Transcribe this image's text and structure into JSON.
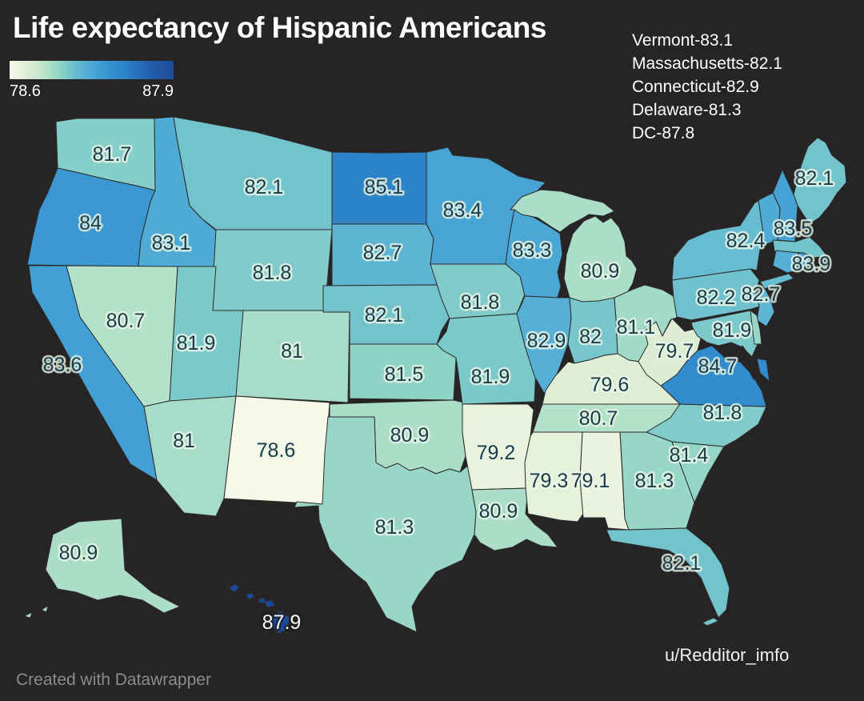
{
  "header": {
    "title": "Life expectancy of Hispanic Americans"
  },
  "legend": {
    "min_label": "78.6",
    "max_label": "87.9"
  },
  "annotations": {
    "lines": [
      "Vermont-83.1",
      "Massachusetts-82.1",
      "Connecticut-82.9",
      "Delaware-81.3",
      "DC-87.8"
    ]
  },
  "credit": {
    "text": "u/Redditor_imfo"
  },
  "watermark": {
    "text": "Created with Datawrapper"
  },
  "chart_data": {
    "type": "heatmap",
    "subtype": "us-state-choropleth",
    "title": "Life expectancy of Hispanic Americans",
    "legend_min": 78.6,
    "legend_max": 87.9,
    "background": "#262424",
    "border_color": "#2c2a2a",
    "label_color": "#1a3a48",
    "color_scale": [
      {
        "v": 78.6,
        "c": "#f6f9e9"
      },
      {
        "v": 79.3,
        "c": "#e6f1da"
      },
      {
        "v": 79.8,
        "c": "#d9ecd2"
      },
      {
        "v": 80.4,
        "c": "#c2e5ca"
      },
      {
        "v": 81.0,
        "c": "#a6dcc8"
      },
      {
        "v": 81.5,
        "c": "#8fd3c7"
      },
      {
        "v": 82.0,
        "c": "#77c6cc"
      },
      {
        "v": 82.5,
        "c": "#63b9d2"
      },
      {
        "v": 83.0,
        "c": "#53add4"
      },
      {
        "v": 83.6,
        "c": "#43a0d4"
      },
      {
        "v": 84.2,
        "c": "#3794d1"
      },
      {
        "v": 85.1,
        "c": "#2d84c8"
      },
      {
        "v": 86.5,
        "c": "#2361ae"
      },
      {
        "v": 87.9,
        "c": "#1c4a9a"
      }
    ],
    "states": [
      {
        "abbr": "WA",
        "name": "Washington",
        "value": 81.7,
        "label_on_map": true
      },
      {
        "abbr": "OR",
        "name": "Oregon",
        "value": 84,
        "label_on_map": true
      },
      {
        "abbr": "CA",
        "name": "California",
        "value": 83.6,
        "label_on_map": true
      },
      {
        "abbr": "ID",
        "name": "Idaho",
        "value": 83.1,
        "label_on_map": true
      },
      {
        "abbr": "NV",
        "name": "Nevada",
        "value": 80.7,
        "label_on_map": true
      },
      {
        "abbr": "MT",
        "name": "Montana",
        "value": 82.1,
        "label_on_map": true
      },
      {
        "abbr": "WY",
        "name": "Wyoming",
        "value": 81.8,
        "label_on_map": true
      },
      {
        "abbr": "UT",
        "name": "Utah",
        "value": 81.9,
        "label_on_map": true
      },
      {
        "abbr": "CO",
        "name": "Colorado",
        "value": 81,
        "label_on_map": true
      },
      {
        "abbr": "AZ",
        "name": "Arizona",
        "value": 81,
        "label_on_map": true
      },
      {
        "abbr": "NM",
        "name": "New Mexico",
        "value": 78.6,
        "label_on_map": true
      },
      {
        "abbr": "ND",
        "name": "North Dakota",
        "value": 85.1,
        "label_on_map": true
      },
      {
        "abbr": "SD",
        "name": "South Dakota",
        "value": 82.7,
        "label_on_map": true
      },
      {
        "abbr": "NE",
        "name": "Nebraska",
        "value": 82.1,
        "label_on_map": true
      },
      {
        "abbr": "KS",
        "name": "Kansas",
        "value": 81.5,
        "label_on_map": true
      },
      {
        "abbr": "OK",
        "name": "Oklahoma",
        "value": 80.9,
        "label_on_map": true
      },
      {
        "abbr": "TX",
        "name": "Texas",
        "value": 81.3,
        "label_on_map": true
      },
      {
        "abbr": "MN",
        "name": "Minnesota",
        "value": 83.4,
        "label_on_map": true
      },
      {
        "abbr": "IA",
        "name": "Iowa",
        "value": 81.8,
        "label_on_map": true
      },
      {
        "abbr": "MO",
        "name": "Missouri",
        "value": 81.9,
        "label_on_map": true
      },
      {
        "abbr": "AR",
        "name": "Arkansas",
        "value": 79.2,
        "label_on_map": true
      },
      {
        "abbr": "LA",
        "name": "Louisiana",
        "value": 80.9,
        "label_on_map": true
      },
      {
        "abbr": "WI",
        "name": "Wisconsin",
        "value": 83.3,
        "label_on_map": true
      },
      {
        "abbr": "IL",
        "name": "Illinois",
        "value": 82.9,
        "label_on_map": true
      },
      {
        "abbr": "IN",
        "name": "Indiana",
        "value": 82,
        "label_on_map": true
      },
      {
        "abbr": "MI",
        "name": "Michigan",
        "value": 80.9,
        "label_on_map": true
      },
      {
        "abbr": "OH",
        "name": "Ohio",
        "value": 81.1,
        "label_on_map": true
      },
      {
        "abbr": "KY",
        "name": "Kentucky",
        "value": 79.6,
        "label_on_map": true
      },
      {
        "abbr": "TN",
        "name": "Tennessee",
        "value": 80.7,
        "label_on_map": true
      },
      {
        "abbr": "MS",
        "name": "Mississippi",
        "value": 79.3,
        "label_on_map": true
      },
      {
        "abbr": "AL",
        "name": "Alabama",
        "value": 79.1,
        "label_on_map": true
      },
      {
        "abbr": "GA",
        "name": "Georgia",
        "value": 81.3,
        "label_on_map": true
      },
      {
        "abbr": "FL",
        "name": "Florida",
        "value": 82.1,
        "label_on_map": true
      },
      {
        "abbr": "SC",
        "name": "South Carolina",
        "value": 81.4,
        "label_on_map": true
      },
      {
        "abbr": "NC",
        "name": "North Carolina",
        "value": 81.8,
        "label_on_map": true
      },
      {
        "abbr": "VA",
        "name": "Virginia",
        "value": 84.7,
        "label_on_map": true
      },
      {
        "abbr": "WV",
        "name": "West Virginia",
        "value": 79.7,
        "label_on_map": true
      },
      {
        "abbr": "MD",
        "name": "Maryland",
        "value": 81.9,
        "label_on_map": true
      },
      {
        "abbr": "PA",
        "name": "Pennsylvania",
        "value": 82.2,
        "label_on_map": true
      },
      {
        "abbr": "NJ",
        "name": "New Jersey",
        "value": 82.7,
        "label_on_map": true
      },
      {
        "abbr": "NY",
        "name": "New York",
        "value": 82.4,
        "label_on_map": true
      },
      {
        "abbr": "ME",
        "name": "Maine",
        "value": 82.1,
        "label_on_map": true
      },
      {
        "abbr": "NH",
        "name": "New Hampshire",
        "value": 83.5,
        "label_on_map": true
      },
      {
        "abbr": "RI",
        "name": "Rhode Island",
        "value": 83.9,
        "label_on_map": true
      },
      {
        "abbr": "VT",
        "name": "Vermont",
        "value": 83.1,
        "label_on_map": false
      },
      {
        "abbr": "MA",
        "name": "Massachusetts",
        "value": 82.1,
        "label_on_map": false
      },
      {
        "abbr": "CT",
        "name": "Connecticut",
        "value": 82.9,
        "label_on_map": false
      },
      {
        "abbr": "DE",
        "name": "Delaware",
        "value": 81.3,
        "label_on_map": false
      },
      {
        "abbr": "DC",
        "name": "DC",
        "value": 87.8,
        "label_on_map": false
      },
      {
        "abbr": "AK",
        "name": "Alaska",
        "value": 80.9,
        "label_on_map": true
      },
      {
        "abbr": "HI",
        "name": "Hawaii",
        "value": 87.9,
        "label_on_map": true,
        "label_style": "light"
      }
    ]
  }
}
